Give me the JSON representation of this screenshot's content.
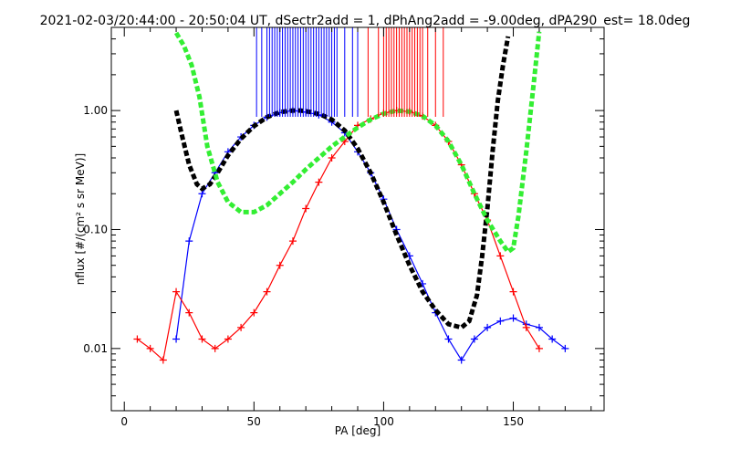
{
  "chart_data": {
    "type": "line",
    "title": "2021-02-03/20:44:00 - 20:50:04 UT, dSectr2add = 1, dPhAng2add = -9.00deg, dPA290_est=  18.0deg",
    "xlabel": "PA [deg]",
    "ylabel": "nflux [#/(cm² s sr MeV)]",
    "xlim": [
      -5,
      185
    ],
    "ylim": [
      0.003,
      5.0
    ],
    "yscale": "log",
    "grid": false,
    "legend": "none",
    "xticks": [
      0,
      50,
      100,
      150
    ],
    "xtick_labels": [
      "0",
      "50",
      "100",
      "150"
    ],
    "yticks": [
      0.01,
      0.1,
      1.0
    ],
    "ytick_labels": [
      "0.01",
      "0.10",
      "1.00"
    ],
    "series": [
      {
        "color": "#0000ff",
        "style": "line+plus-markers",
        "x": [
          20,
          25,
          30,
          35,
          40,
          45,
          50,
          55,
          60,
          65,
          70,
          75,
          80,
          85,
          90,
          95,
          100,
          105,
          110,
          115,
          120,
          125,
          130,
          135,
          140,
          145,
          150,
          155,
          160,
          165,
          170
        ],
        "y": [
          0.012,
          0.08,
          0.2,
          0.3,
          0.45,
          0.6,
          0.75,
          0.88,
          0.96,
          1.0,
          0.97,
          0.92,
          0.8,
          0.65,
          0.45,
          0.3,
          0.18,
          0.1,
          0.06,
          0.035,
          0.02,
          0.012,
          0.008,
          0.012,
          0.015,
          0.017,
          0.018,
          0.016,
          0.015,
          0.012,
          0.01
        ]
      },
      {
        "color": "#ff0000",
        "style": "line+plus-markers",
        "x": [
          5,
          10,
          15,
          20,
          25,
          30,
          35,
          40,
          45,
          50,
          55,
          60,
          65,
          70,
          75,
          80,
          85,
          90,
          95,
          100,
          105,
          110,
          115,
          120,
          125,
          130,
          135,
          140,
          145,
          150,
          155,
          160
        ],
        "y": [
          0.012,
          0.01,
          0.008,
          0.03,
          0.02,
          0.012,
          0.01,
          0.012,
          0.015,
          0.02,
          0.03,
          0.05,
          0.08,
          0.15,
          0.25,
          0.4,
          0.55,
          0.75,
          0.85,
          0.95,
          1.0,
          0.98,
          0.9,
          0.75,
          0.55,
          0.35,
          0.2,
          0.12,
          0.06,
          0.03,
          0.015,
          0.01
        ]
      },
      {
        "color": "#000000",
        "style": "thick-dashed",
        "x": [
          20,
          22,
          25,
          28,
          30,
          33,
          36,
          40,
          45,
          50,
          55,
          60,
          65,
          68,
          72,
          76,
          80,
          85,
          90,
          95,
          100,
          105,
          110,
          115,
          120,
          125,
          130,
          133,
          136,
          138,
          140,
          142,
          144,
          146,
          148
        ],
        "y": [
          1.0,
          0.65,
          0.35,
          0.24,
          0.22,
          0.24,
          0.3,
          0.42,
          0.58,
          0.74,
          0.88,
          0.97,
          1.0,
          1.0,
          0.97,
          0.92,
          0.84,
          0.68,
          0.48,
          0.3,
          0.17,
          0.09,
          0.05,
          0.03,
          0.021,
          0.016,
          0.015,
          0.017,
          0.028,
          0.06,
          0.15,
          0.45,
          1.2,
          2.4,
          4.2
        ]
      },
      {
        "color": "#33ee33",
        "style": "thick-dashed",
        "x": [
          20,
          23,
          26,
          29,
          32,
          36,
          40,
          45,
          50,
          55,
          60,
          65,
          70,
          75,
          80,
          85,
          90,
          95,
          100,
          105,
          110,
          115,
          120,
          125,
          130,
          135,
          140,
          145,
          148,
          150,
          152,
          155,
          158,
          160
        ],
        "y": [
          4.5,
          3.5,
          2.4,
          1.3,
          0.5,
          0.25,
          0.17,
          0.14,
          0.14,
          0.16,
          0.2,
          0.25,
          0.32,
          0.4,
          0.5,
          0.6,
          0.72,
          0.84,
          0.94,
          1.0,
          0.98,
          0.9,
          0.75,
          0.55,
          0.35,
          0.2,
          0.12,
          0.08,
          0.065,
          0.07,
          0.13,
          0.45,
          1.8,
          4.6
        ]
      }
    ],
    "ticks_top": [
      {
        "color": "#0000ff",
        "x": [
          51,
          53,
          55,
          56,
          57,
          58,
          59,
          60,
          61,
          62,
          63,
          64,
          65,
          66,
          67,
          68,
          69,
          70,
          71,
          72,
          73,
          74,
          75,
          76,
          77,
          78,
          79,
          80,
          81,
          82,
          85,
          88,
          90
        ]
      },
      {
        "color": "#ff0000",
        "x": [
          94,
          98,
          100,
          101,
          102,
          103,
          104,
          105,
          106,
          107,
          108,
          109,
          110,
          111,
          112,
          113,
          114,
          115,
          117,
          120,
          123
        ]
      }
    ]
  }
}
